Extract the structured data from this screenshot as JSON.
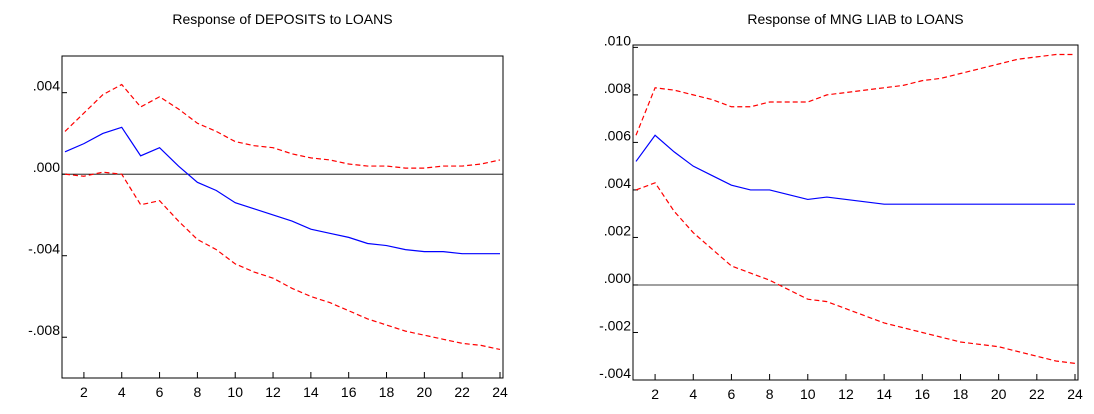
{
  "chart_data": [
    {
      "type": "line",
      "title": "Response of DEPOSITS to LOANS",
      "x": [
        1,
        2,
        3,
        4,
        5,
        6,
        7,
        8,
        9,
        10,
        11,
        12,
        13,
        14,
        15,
        16,
        17,
        18,
        19,
        20,
        21,
        22,
        23,
        24
      ],
      "xlim": [
        1,
        24
      ],
      "xticks": [
        2,
        4,
        6,
        8,
        10,
        12,
        14,
        16,
        18,
        20,
        22,
        24
      ],
      "ylim": [
        -0.01,
        0.0058
      ],
      "yticks": [
        {
          "value": 0.004,
          "label": ".004"
        },
        {
          "value": 0,
          "label": ".000"
        },
        {
          "value": -0.004,
          "label": "-.004"
        },
        {
          "value": -0.008,
          "label": "-.008"
        }
      ],
      "zero_line": true,
      "series": [
        {
          "color": "#0000ff",
          "dashed": false,
          "values": [
            0.0011,
            0.0015,
            0.002,
            0.0023,
            0.0009,
            0.0013,
            0.0004,
            -0.0004,
            -0.0008,
            -0.0014,
            -0.0017,
            -0.002,
            -0.0023,
            -0.0027,
            -0.0029,
            -0.0031,
            -0.0034,
            -0.0035,
            -0.0037,
            -0.0038,
            -0.0038,
            -0.0039,
            -0.0039,
            -0.0039
          ]
        },
        {
          "color": "#ff0000",
          "dashed": true,
          "values": [
            0.0021,
            0.003,
            0.0039,
            0.0044,
            0.0033,
            0.0038,
            0.0032,
            0.0025,
            0.0021,
            0.0016,
            0.0014,
            0.0013,
            0.001,
            0.0008,
            0.0007,
            0.0005,
            0.0004,
            0.0004,
            0.0003,
            0.0003,
            0.0004,
            0.0004,
            0.0005,
            0.0007
          ]
        },
        {
          "color": "#ff0000",
          "dashed": true,
          "values": [
            0.0,
            -0.0001,
            0.0001,
            0.0,
            -0.0015,
            -0.0013,
            -0.0023,
            -0.0032,
            -0.0037,
            -0.0044,
            -0.0048,
            -0.0051,
            -0.0056,
            -0.006,
            -0.0063,
            -0.0067,
            -0.0071,
            -0.0074,
            -0.0077,
            -0.0079,
            -0.0081,
            -0.0083,
            -0.0084,
            -0.0086
          ]
        }
      ]
    },
    {
      "type": "line",
      "title": "Response of MNG LIAB to LOANS",
      "x": [
        1,
        2,
        3,
        4,
        5,
        6,
        7,
        8,
        9,
        10,
        11,
        12,
        13,
        14,
        15,
        16,
        17,
        18,
        19,
        20,
        21,
        22,
        23,
        24
      ],
      "xlim": [
        1,
        24
      ],
      "xticks": [
        2,
        4,
        6,
        8,
        10,
        12,
        14,
        16,
        18,
        20,
        22,
        24
      ],
      "ylim": [
        -0.004,
        0.0101
      ],
      "yticks": [
        {
          "value": 0.01,
          "label": ".010"
        },
        {
          "value": 0.008,
          "label": ".008"
        },
        {
          "value": 0.006,
          "label": ".006"
        },
        {
          "value": 0.004,
          "label": ".004"
        },
        {
          "value": 0.002,
          "label": ".002"
        },
        {
          "value": 0,
          "label": ".000"
        },
        {
          "value": -0.002,
          "label": "-.002"
        },
        {
          "value": -0.004,
          "label": "-.004"
        }
      ],
      "zero_line": true,
      "series": [
        {
          "color": "#0000ff",
          "dashed": false,
          "values": [
            0.0052,
            0.0063,
            0.0056,
            0.005,
            0.0046,
            0.0042,
            0.004,
            0.004,
            0.0038,
            0.0036,
            0.0037,
            0.0036,
            0.0035,
            0.0034,
            0.0034,
            0.0034,
            0.0034,
            0.0034,
            0.0034,
            0.0034,
            0.0034,
            0.0034,
            0.0034,
            0.0034
          ]
        },
        {
          "color": "#ff0000",
          "dashed": true,
          "values": [
            0.0063,
            0.0083,
            0.0082,
            0.008,
            0.0078,
            0.0075,
            0.0075,
            0.0077,
            0.0077,
            0.0077,
            0.008,
            0.0081,
            0.0082,
            0.0083,
            0.0084,
            0.0086,
            0.0087,
            0.0089,
            0.0091,
            0.0093,
            0.0095,
            0.0096,
            0.0097,
            0.0097
          ]
        },
        {
          "color": "#ff0000",
          "dashed": true,
          "values": [
            0.004,
            0.0043,
            0.0031,
            0.0022,
            0.0015,
            0.0008,
            0.0005,
            0.0002,
            -0.0002,
            -0.0006,
            -0.0007,
            -0.001,
            -0.0013,
            -0.0016,
            -0.0018,
            -0.002,
            -0.0022,
            -0.0024,
            -0.0025,
            -0.0026,
            -0.0028,
            -0.003,
            -0.0032,
            -0.0033
          ]
        }
      ]
    }
  ]
}
